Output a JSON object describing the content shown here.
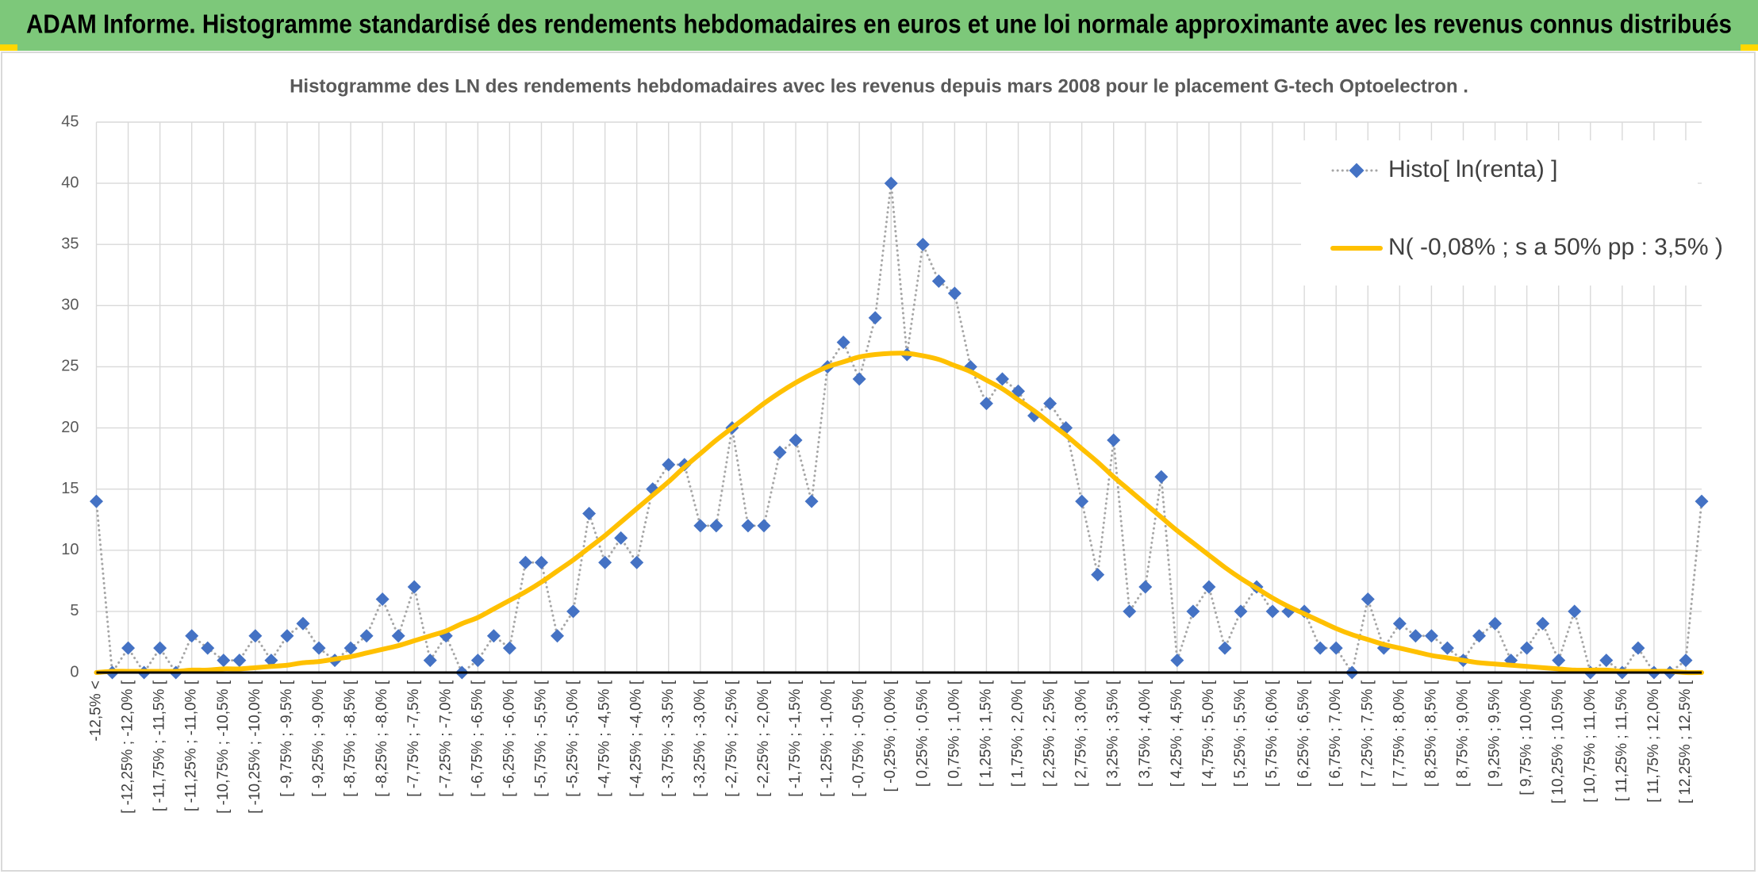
{
  "chart_data": {
    "type": "line",
    "title": "ADAM Informe. Histogramme standardisé des rendements hebdomadaires en euros et une loi normale approximante avec les revenus connus distribués",
    "subtitle": "Histogramme des LN des rendements hebdomadaires avec les revenus depuis mars 2008 pour le placement G-tech Optoelectron .",
    "categories": [
      "-12,5% <",
      null,
      "[ -12,25% ; -12,0% [",
      null,
      "[ -11,75% ; -11,5% [",
      null,
      "[ -11,25% ; -11,0% [",
      null,
      "[ -10,75% ; -10,5% [",
      null,
      "[ -10,25% ; -10,0% [",
      null,
      "[ -9,75% ; -9,5% [",
      null,
      "[ -9,25% ; -9,0% [",
      null,
      "[ -8,75% ; -8,5% [",
      null,
      "[ -8,25% ; -8,0% [",
      null,
      "[ -7,75% ; -7,5% [",
      null,
      "[ -7,25% ; -7,0% [",
      null,
      "[ -6,75% ; -6,5% [",
      null,
      "[ -6,25% ; -6,0% [",
      null,
      "[ -5,75% ; -5,5% [",
      null,
      "[ -5,25% ; -5,0% [",
      null,
      "[ -4,75% ; -4,5% [",
      null,
      "[ -4,25% ; -4,0% [",
      null,
      "[ -3,75% ; -3,5% [",
      null,
      "[ -3,25% ; -3,0% [",
      null,
      "[ -2,75% ; -2,5% [",
      null,
      "[ -2,25% ; -2,0% [",
      null,
      "[ -1,75% ; -1,5% [",
      null,
      "[ -1,25% ; -1,0% [",
      null,
      "[ -0,75% ; -0,5% [",
      null,
      "[ -0,25% ; 0,0% [",
      null,
      "[ 0,25% ; 0,5% [",
      null,
      "[ 0,75% ; 1,0% [",
      null,
      "[ 1,25% ; 1,5% [",
      null,
      "[ 1,75% ; 2,0% [",
      null,
      "[ 2,25% ; 2,5% [",
      null,
      "[ 2,75% ; 3,0% [",
      null,
      "[ 3,25% ; 3,5% [",
      null,
      "[ 3,75% ; 4,0% [",
      null,
      "[ 4,25% ; 4,5% [",
      null,
      "[ 4,75% ; 5,0% [",
      null,
      "[ 5,25% ; 5,5% [",
      null,
      "[ 5,75% ; 6,0% [",
      null,
      "[ 6,25% ; 6,5% [",
      null,
      "[ 6,75% ; 7,0% [",
      null,
      "[ 7,25% ; 7,5% [",
      null,
      "[ 7,75% ; 8,0% [",
      null,
      "[ 8,25% ; 8,5% [",
      null,
      "[ 8,75% ; 9,0% [",
      null,
      "[ 9,25% ; 9,5% [",
      null,
      "[ 9,75% ; 10,0% [",
      null,
      "[ 10,25% ; 10,5% [",
      null,
      "[ 10,75% ; 11,0% [",
      null,
      "[ 11,25% ; 11,5% [",
      null,
      "[ 11,75% ; 12,0% [",
      null,
      "[ 12,25% ; 12,5% [",
      null
    ],
    "series": [
      {
        "name": "Histo[ ln(renta) ]",
        "color": "#4472c4",
        "line_color": "#a6a6a6",
        "line_style": "dotted",
        "marker": "diamond",
        "values": [
          14,
          0,
          2,
          0,
          2,
          0,
          3,
          2,
          1,
          1,
          3,
          1,
          3,
          4,
          2,
          1,
          2,
          3,
          6,
          3,
          7,
          1,
          3,
          0,
          1,
          3,
          2,
          9,
          9,
          3,
          5,
          13,
          9,
          11,
          9,
          15,
          17,
          17,
          12,
          12,
          20,
          12,
          12,
          18,
          19,
          14,
          25,
          27,
          24,
          29,
          40,
          26,
          35,
          32,
          31,
          25,
          22,
          24,
          23,
          21,
          22,
          20,
          14,
          8,
          19,
          5,
          7,
          16,
          1,
          5,
          7,
          2,
          5,
          7,
          5,
          5,
          5,
          2,
          2,
          0,
          6,
          2,
          4,
          3,
          3,
          2,
          1,
          3,
          4,
          1,
          2,
          4,
          1,
          5,
          0,
          1,
          0,
          2,
          0,
          0,
          1,
          14
        ]
      },
      {
        "name": "N( -0,08% ; s a 50% pp : 3,5% )",
        "color": "#ffc000",
        "line_style": "solid",
        "marker": "none",
        "smooth": true,
        "values": [
          0.0,
          0.1,
          0.1,
          0.1,
          0.1,
          0.1,
          0.2,
          0.2,
          0.3,
          0.3,
          0.4,
          0.5,
          0.6,
          0.8,
          0.9,
          1.1,
          1.3,
          1.6,
          1.9,
          2.2,
          2.6,
          3.0,
          3.4,
          4.0,
          4.5,
          5.2,
          5.9,
          6.6,
          7.4,
          8.3,
          9.2,
          10.2,
          11.2,
          12.3,
          13.4,
          14.5,
          15.6,
          16.8,
          17.9,
          19.0,
          20.0,
          21.0,
          22.0,
          22.9,
          23.7,
          24.4,
          25.0,
          25.4,
          25.8,
          26.0,
          26.1,
          26.1,
          25.9,
          25.6,
          25.1,
          24.6,
          23.9,
          23.2,
          22.3,
          21.4,
          20.4,
          19.4,
          18.3,
          17.2,
          16.0,
          14.9,
          13.8,
          12.7,
          11.6,
          10.6,
          9.6,
          8.6,
          7.7,
          6.9,
          6.1,
          5.4,
          4.8,
          4.2,
          3.6,
          3.1,
          2.7,
          2.3,
          2.0,
          1.7,
          1.4,
          1.2,
          1.0,
          0.8,
          0.7,
          0.6,
          0.5,
          0.4,
          0.3,
          0.2,
          0.2,
          0.2,
          0.1,
          0.1,
          0.1,
          0.1,
          0.0,
          0.0
        ]
      }
    ],
    "ylim": [
      0,
      45
    ],
    "yticks": [
      0,
      5,
      10,
      15,
      20,
      25,
      30,
      35,
      40,
      45
    ],
    "grid": true,
    "legend": "upper right"
  }
}
